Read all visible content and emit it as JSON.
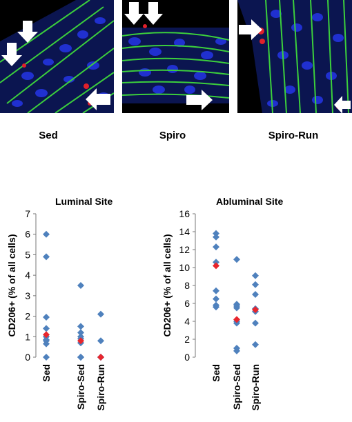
{
  "panels": [
    {
      "label": "Sed"
    },
    {
      "label": "Spiro"
    },
    {
      "label": "Spiro-Run"
    }
  ],
  "colors": {
    "point": "#4f81bd",
    "mean_point": "#e8262d",
    "fiber": "#3ccf3c",
    "nuclei": "#2030d0",
    "marker": "#e0202a"
  },
  "chart_data": [
    {
      "type": "scatter",
      "title": "Luminal Site",
      "ylabel": "CD206+ (% of all cells)",
      "categories": [
        "Sed",
        "Spiro-Sed",
        "Spiro-Run"
      ],
      "ylim": [
        0,
        7
      ],
      "yticks": [
        0,
        1,
        2,
        3,
        4,
        5,
        6,
        7
      ],
      "series": [
        {
          "values": [
            [
              6.0,
              4.9,
              1.95,
              1.4,
              1.0,
              0.85,
              0.8,
              0.65,
              0.0
            ],
            [
              3.5,
              1.5,
              1.2,
              1.0,
              0.9,
              0.7,
              0.0,
              0.0,
              0.0
            ],
            [
              2.1,
              0.8,
              0.0,
              0.0,
              0.0,
              0.0
            ]
          ]
        },
        {
          "values": [
            1.1,
            0.8,
            0.0
          ]
        }
      ]
    },
    {
      "type": "scatter",
      "title": "Abluminal Site",
      "ylabel": "CD206+ (% of all cells)",
      "categories": [
        "Sed",
        "Spiro-Sed",
        "Spiro-Run"
      ],
      "ylim": [
        0,
        16
      ],
      "yticks": [
        0,
        2,
        4,
        6,
        8,
        10,
        12,
        14,
        16
      ],
      "series": [
        {
          "values": [
            [
              13.8,
              13.4,
              12.3,
              10.6,
              7.4,
              6.5,
              5.8,
              5.6
            ],
            [
              10.9,
              5.9,
              5.7,
              5.5,
              4.0,
              3.8,
              1.0,
              0.7
            ],
            [
              9.1,
              8.1,
              7.0,
              5.4,
              5.1,
              3.8,
              1.4
            ]
          ]
        },
        {
          "values": [
            10.2,
            4.2,
            5.3
          ]
        }
      ]
    }
  ]
}
